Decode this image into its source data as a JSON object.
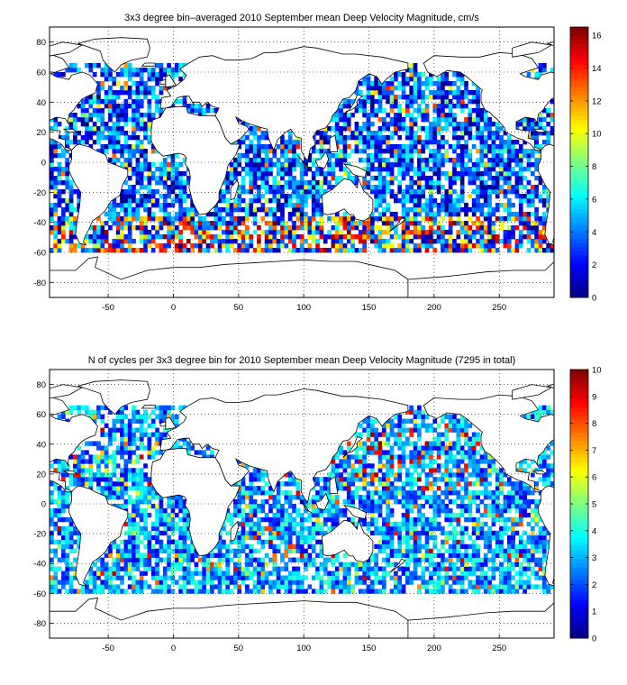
{
  "chart_data": [
    {
      "type": "heatmap",
      "title": "3x3 degree bin–averaged 2010 September mean Deep Velocity Magnitude, cm/s",
      "xlabel": "",
      "ylabel": "",
      "xlim": [
        -95,
        292
      ],
      "ylim": [
        -90,
        90
      ],
      "xticks": [
        -50,
        0,
        50,
        100,
        150,
        200,
        250
      ],
      "yticks": [
        -80,
        -60,
        -40,
        -20,
        0,
        20,
        40,
        60,
        80
      ],
      "grid": "dotted",
      "bin_size_deg": 3,
      "data_lat_range": [
        -60,
        66
      ],
      "colorbar": {
        "min": 0,
        "max": 16.5,
        "ticks": [
          0,
          2,
          4,
          6,
          8,
          10,
          12,
          14,
          16
        ],
        "colormap": "jet",
        "placement": "right"
      },
      "dominant_values": "mostly 0-6 cm/s; high values (10-16.5) concentrated along 40-60S (Antarctic Circumpolar Current)"
    },
    {
      "type": "heatmap",
      "title": "N of cycles per 3x3 degree bin for 2010 September mean Deep Velocity Magnitude (7295 in total)",
      "xlabel": "",
      "ylabel": "",
      "xlim": [
        -95,
        292
      ],
      "ylim": [
        -90,
        90
      ],
      "xticks": [
        -50,
        0,
        50,
        100,
        150,
        200,
        250
      ],
      "yticks": [
        -80,
        -60,
        -40,
        -20,
        0,
        20,
        40,
        60,
        80
      ],
      "grid": "dotted",
      "bin_size_deg": 3,
      "total_cycles": 7295,
      "data_lat_range": [
        -60,
        66
      ],
      "colorbar": {
        "min": 0,
        "max": 10,
        "ticks": [
          0,
          1,
          2,
          3,
          4,
          5,
          6,
          7,
          8,
          9,
          10
        ],
        "colormap": "jet",
        "placement": "right"
      },
      "dominant_values": "mostly 1-4 cycles per bin; up to 9-10 in North Pacific"
    }
  ]
}
